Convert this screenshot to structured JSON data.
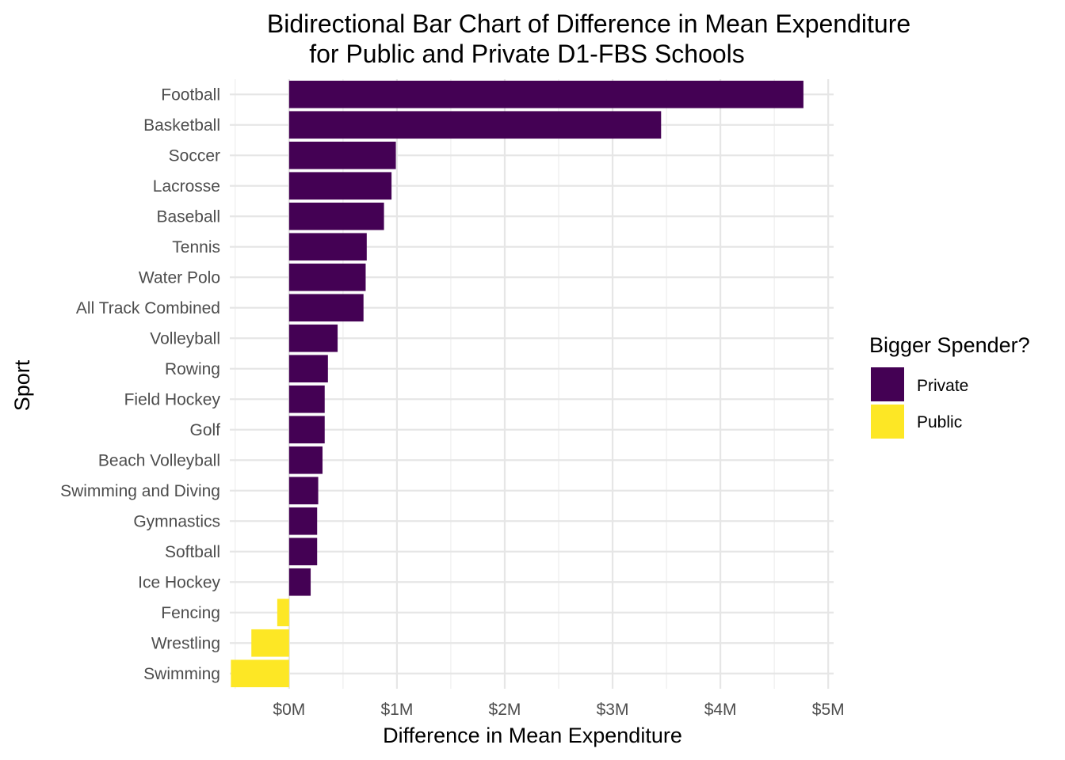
{
  "chart_data": {
    "type": "bar",
    "orientation": "horizontal",
    "title": "Bidirectional Bar Chart of Difference in Mean Expenditure",
    "subtitle": "for Public and Private D1-FBS Schools",
    "xlabel": "Difference in Mean Expenditure",
    "ylabel": "Sport",
    "xlim": [
      -0.55,
      5.05
    ],
    "x_ticks": [
      0,
      1,
      2,
      3,
      4,
      5
    ],
    "x_tick_labels": [
      "$0M",
      "$1M",
      "$2M",
      "$3M",
      "$4M",
      "$5M"
    ],
    "categories": [
      "Football",
      "Basketball",
      "Soccer",
      "Lacrosse",
      "Baseball",
      "Tennis",
      "Water Polo",
      "All Track Combined",
      "Volleyball",
      "Rowing",
      "Field Hockey",
      "Golf",
      "Beach Volleyball",
      "Swimming and Diving",
      "Gymnastics",
      "Softball",
      "Ice Hockey",
      "Fencing",
      "Wrestling",
      "Swimming"
    ],
    "values": [
      4.77,
      3.45,
      0.99,
      0.95,
      0.88,
      0.72,
      0.71,
      0.69,
      0.45,
      0.36,
      0.33,
      0.33,
      0.31,
      0.27,
      0.26,
      0.26,
      0.2,
      -0.11,
      -0.35,
      -0.54
    ],
    "groups": [
      "Private",
      "Private",
      "Private",
      "Private",
      "Private",
      "Private",
      "Private",
      "Private",
      "Private",
      "Private",
      "Private",
      "Private",
      "Private",
      "Private",
      "Private",
      "Private",
      "Private",
      "Public",
      "Public",
      "Public"
    ],
    "grid": true,
    "legend": {
      "title": "Bigger Spender?",
      "position": "right",
      "items": [
        {
          "label": "Private",
          "color": "#440154"
        },
        {
          "label": "Public",
          "color": "#FDE725"
        }
      ]
    }
  }
}
